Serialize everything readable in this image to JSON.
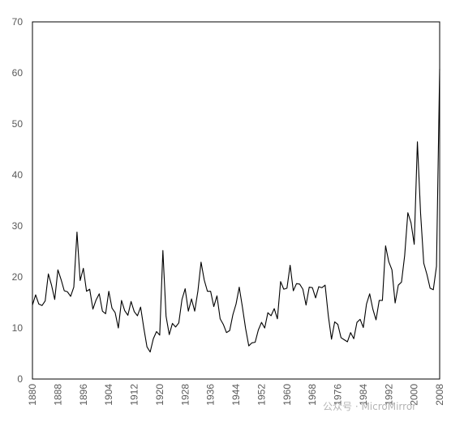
{
  "watermark": "公众号 · MicroMirror",
  "chart_data": {
    "type": "line",
    "title": "",
    "xlabel": "",
    "ylabel": "",
    "ylim": [
      0,
      70
    ],
    "xlim": [
      1880,
      2008
    ],
    "yticks": [
      0,
      10,
      20,
      30,
      40,
      50,
      60,
      70
    ],
    "xticks": [
      1880,
      1888,
      1896,
      1904,
      1912,
      1920,
      1928,
      1936,
      1944,
      1952,
      1960,
      1968,
      1976,
      1984,
      1992,
      2000,
      2008
    ],
    "grid": false,
    "line_color": "#000000",
    "series": [
      {
        "name": "",
        "x": [
          1880,
          1881,
          1882,
          1883,
          1884,
          1885,
          1886,
          1887,
          1888,
          1889,
          1890,
          1891,
          1892,
          1893,
          1894,
          1895,
          1896,
          1897,
          1898,
          1899,
          1900,
          1901,
          1902,
          1903,
          1904,
          1905,
          1906,
          1907,
          1908,
          1909,
          1910,
          1911,
          1912,
          1913,
          1914,
          1915,
          1916,
          1917,
          1918,
          1919,
          1920,
          1921,
          1922,
          1923,
          1924,
          1925,
          1926,
          1927,
          1928,
          1929,
          1930,
          1931,
          1932,
          1933,
          1934,
          1935,
          1936,
          1937,
          1938,
          1939,
          1940,
          1941,
          1942,
          1943,
          1944,
          1945,
          1946,
          1947,
          1948,
          1949,
          1950,
          1951,
          1952,
          1953,
          1954,
          1955,
          1956,
          1957,
          1958,
          1959,
          1960,
          1961,
          1962,
          1963,
          1964,
          1965,
          1966,
          1967,
          1968,
          1969,
          1970,
          1971,
          1972,
          1973,
          1974,
          1975,
          1976,
          1977,
          1978,
          1979,
          1980,
          1981,
          1982,
          1983,
          1984,
          1985,
          1986,
          1987,
          1988,
          1989,
          1990,
          1991,
          1992,
          1993,
          1994,
          1995,
          1996,
          1997,
          1998,
          1999,
          2000,
          2001,
          2002,
          2003,
          2004,
          2005,
          2006,
          2007,
          2008
        ],
        "values": [
          14.5,
          16.5,
          14.7,
          14.4,
          15.3,
          20.6,
          18.4,
          15.6,
          21.4,
          19.5,
          17.3,
          17.1,
          16.2,
          18.0,
          28.8,
          19.3,
          21.7,
          17.2,
          17.6,
          13.7,
          15.5,
          16.7,
          13.3,
          12.8,
          17.2,
          13.9,
          13.0,
          10.0,
          15.4,
          13.4,
          12.5,
          15.2,
          13.2,
          12.4,
          14.1,
          10.0,
          6.3,
          5.3,
          7.9,
          9.3,
          8.6,
          25.2,
          12.3,
          8.7,
          10.9,
          10.2,
          11.0,
          15.6,
          17.7,
          13.3,
          15.7,
          13.3,
          17.2,
          22.9,
          19.4,
          17.2,
          17.2,
          14.2,
          16.3,
          11.8,
          10.7,
          9.1,
          9.5,
          12.6,
          14.7,
          18.0,
          14.1,
          9.9,
          6.5,
          7.1,
          7.2,
          9.6,
          11.1,
          10.0,
          13.0,
          12.4,
          13.8,
          11.8,
          19.1,
          17.6,
          17.8,
          22.3,
          17.3,
          18.7,
          18.6,
          17.6,
          14.5,
          18.0,
          17.9,
          15.9,
          18.1,
          17.9,
          18.4,
          12.4,
          7.8,
          11.2,
          10.7,
          8.1,
          7.7,
          7.3,
          9.1,
          7.9,
          11.1,
          11.7,
          10.1,
          14.7,
          16.7,
          13.7,
          11.6,
          15.4,
          15.4,
          26.1,
          23.0,
          21.4,
          14.9,
          18.4,
          19.0,
          24.2,
          32.6,
          30.6,
          26.4,
          46.5,
          32.5,
          22.7,
          20.5,
          17.8,
          17.5,
          22.1,
          60.8
        ]
      }
    ]
  }
}
